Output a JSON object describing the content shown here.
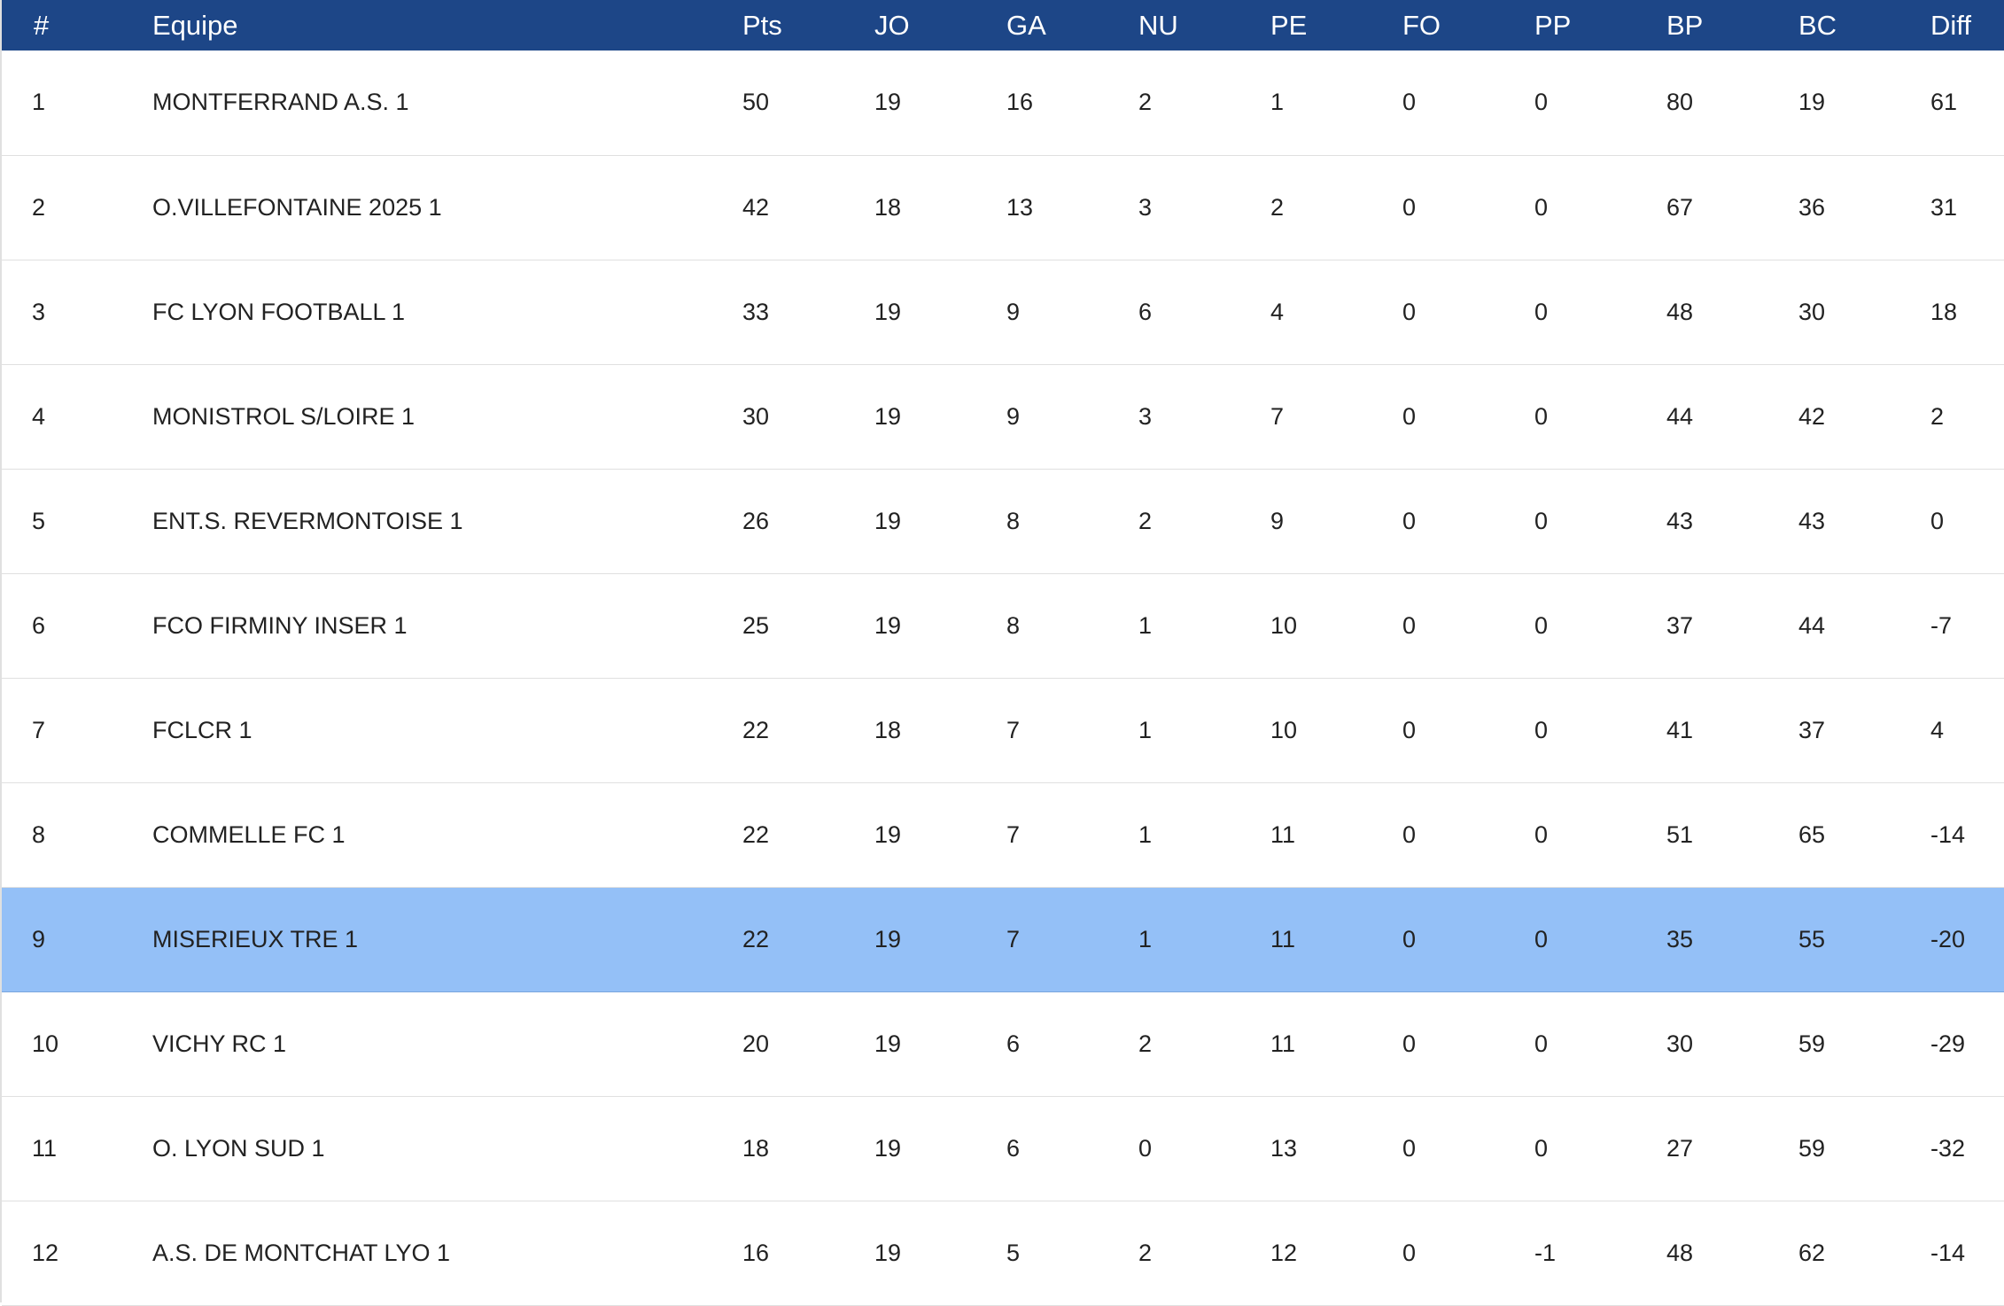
{
  "standings": {
    "columns": [
      "#",
      "Equipe",
      "Pts",
      "JO",
      "GA",
      "NU",
      "PE",
      "FO",
      "PP",
      "BP",
      "BC",
      "Diff"
    ],
    "highlight_color": "#94c0f7",
    "header_color": "#1d4687",
    "highlighted_rank": "9",
    "rows": [
      {
        "rank": "1",
        "team": "MONTFERRAND A.S. 1",
        "pts": "50",
        "jo": "19",
        "ga": "16",
        "nu": "2",
        "pe": "1",
        "fo": "0",
        "pp": "0",
        "bp": "80",
        "bc": "19",
        "diff": "61"
      },
      {
        "rank": "2",
        "team": "O.VILLEFONTAINE 2025 1",
        "pts": "42",
        "jo": "18",
        "ga": "13",
        "nu": "3",
        "pe": "2",
        "fo": "0",
        "pp": "0",
        "bp": "67",
        "bc": "36",
        "diff": "31"
      },
      {
        "rank": "3",
        "team": "FC LYON FOOTBALL 1",
        "pts": "33",
        "jo": "19",
        "ga": "9",
        "nu": "6",
        "pe": "4",
        "fo": "0",
        "pp": "0",
        "bp": "48",
        "bc": "30",
        "diff": "18"
      },
      {
        "rank": "4",
        "team": "MONISTROL S/LOIRE 1",
        "pts": "30",
        "jo": "19",
        "ga": "9",
        "nu": "3",
        "pe": "7",
        "fo": "0",
        "pp": "0",
        "bp": "44",
        "bc": "42",
        "diff": "2"
      },
      {
        "rank": "5",
        "team": "ENT.S. REVERMONTOISE 1",
        "pts": "26",
        "jo": "19",
        "ga": "8",
        "nu": "2",
        "pe": "9",
        "fo": "0",
        "pp": "0",
        "bp": "43",
        "bc": "43",
        "diff": "0"
      },
      {
        "rank": "6",
        "team": "FCO FIRMINY INSER 1",
        "pts": "25",
        "jo": "19",
        "ga": "8",
        "nu": "1",
        "pe": "10",
        "fo": "0",
        "pp": "0",
        "bp": "37",
        "bc": "44",
        "diff": "-7"
      },
      {
        "rank": "7",
        "team": "FCLCR 1",
        "pts": "22",
        "jo": "18",
        "ga": "7",
        "nu": "1",
        "pe": "10",
        "fo": "0",
        "pp": "0",
        "bp": "41",
        "bc": "37",
        "diff": "4"
      },
      {
        "rank": "8",
        "team": "COMMELLE FC 1",
        "pts": "22",
        "jo": "19",
        "ga": "7",
        "nu": "1",
        "pe": "11",
        "fo": "0",
        "pp": "0",
        "bp": "51",
        "bc": "65",
        "diff": "-14"
      },
      {
        "rank": "9",
        "team": "MISERIEUX TRE 1",
        "pts": "22",
        "jo": "19",
        "ga": "7",
        "nu": "1",
        "pe": "11",
        "fo": "0",
        "pp": "0",
        "bp": "35",
        "bc": "55",
        "diff": "-20"
      },
      {
        "rank": "10",
        "team": "VICHY RC 1",
        "pts": "20",
        "jo": "19",
        "ga": "6",
        "nu": "2",
        "pe": "11",
        "fo": "0",
        "pp": "0",
        "bp": "30",
        "bc": "59",
        "diff": "-29"
      },
      {
        "rank": "11",
        "team": "O. LYON SUD 1",
        "pts": "18",
        "jo": "19",
        "ga": "6",
        "nu": "0",
        "pe": "13",
        "fo": "0",
        "pp": "0",
        "bp": "27",
        "bc": "59",
        "diff": "-32"
      },
      {
        "rank": "12",
        "team": "A.S. DE MONTCHAT LYO 1",
        "pts": "16",
        "jo": "19",
        "ga": "5",
        "nu": "2",
        "pe": "12",
        "fo": "0",
        "pp": "-1",
        "bp": "48",
        "bc": "62",
        "diff": "-14"
      }
    ]
  }
}
